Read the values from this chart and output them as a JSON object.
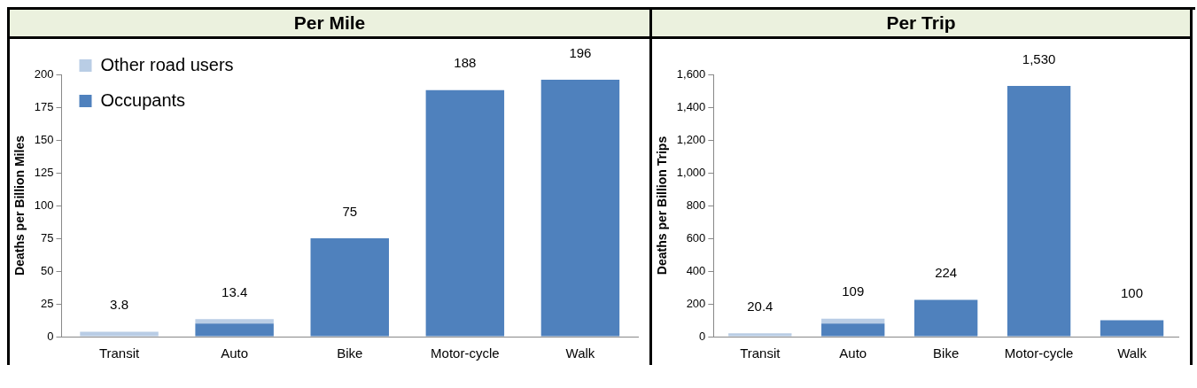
{
  "chart_data": [
    {
      "type": "bar",
      "title": "Per Mile",
      "ylabel": "Deaths per Billion Miles",
      "categories": [
        "Transit",
        "Auto",
        "Bike",
        "Motor-cycle",
        "Walk"
      ],
      "stacked": true,
      "series": [
        {
          "name": "Occupants",
          "color": "#4f81bd",
          "values": [
            0,
            10,
            75,
            188,
            196
          ]
        },
        {
          "name": "Other road users",
          "color": "#b9cde5",
          "values": [
            3.8,
            3.4,
            0,
            0,
            0
          ]
        }
      ],
      "totals": [
        "3.8",
        "13.4",
        "75",
        "188",
        "196"
      ],
      "ylim": [
        0,
        200
      ],
      "yticks": [
        0,
        25,
        50,
        75,
        100,
        125,
        150,
        175,
        200
      ],
      "grid": false,
      "legend": "top left"
    },
    {
      "type": "bar",
      "title": "Per Trip",
      "ylabel": "Deaths per Billion Trips",
      "categories": [
        "Transit",
        "Auto",
        "Bike",
        "Motor-cycle",
        "Walk"
      ],
      "stacked": true,
      "series": [
        {
          "color": "#4f81bd",
          "values": [
            0,
            80,
            224,
            1530,
            100
          ]
        },
        {
          "color": "#b9cde5",
          "values": [
            20.4,
            29,
            0,
            0,
            0
          ]
        }
      ],
      "totals": [
        "20.4",
        "109",
        "224",
        "1,530",
        "100"
      ],
      "ylim": [
        0,
        1600
      ],
      "yticks": [
        0,
        200,
        400,
        600,
        800,
        {
          "value": 1000,
          "label": "1,000"
        },
        {
          "value": 1200,
          "label": "1,200"
        },
        {
          "value": 1400,
          "label": "1,400"
        },
        {
          "value": 1600,
          "label": "1,600"
        }
      ],
      "grid": false,
      "legend": false
    }
  ]
}
